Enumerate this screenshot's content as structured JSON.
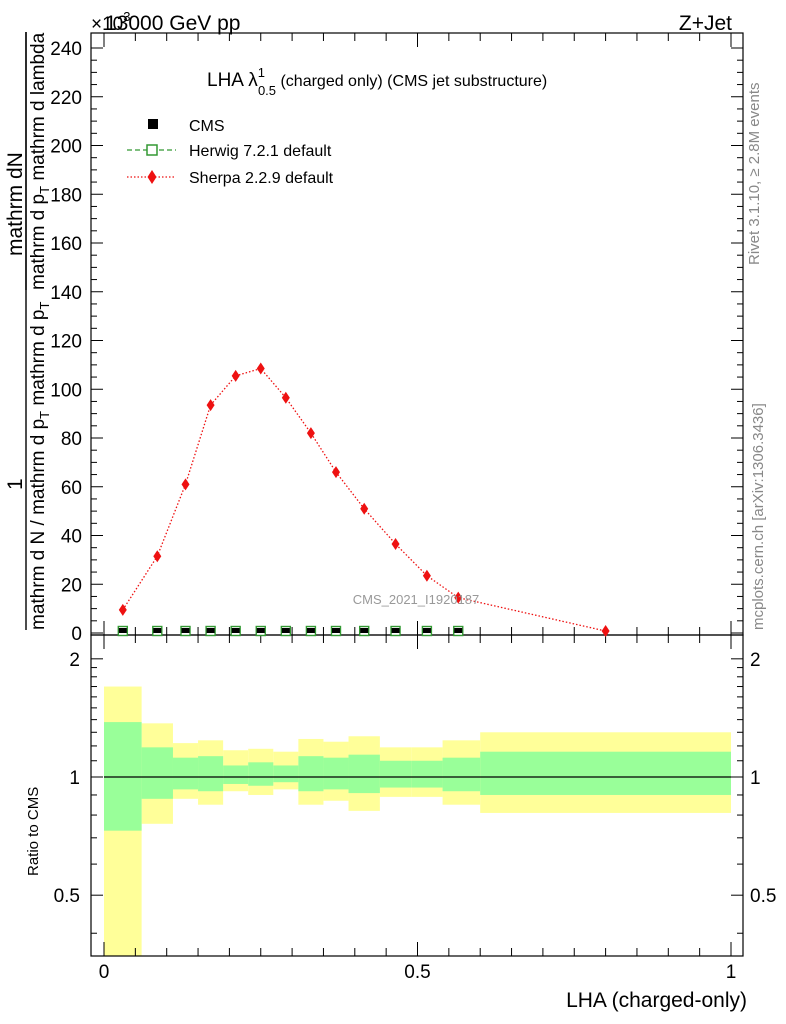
{
  "header": {
    "left": "13000 GeV pp",
    "right": "Z+Jet",
    "exponent": "×10",
    "exponent_power": "3"
  },
  "side_labels": {
    "rivet": "Rivet 3.1.10, ≥ 2.8M events",
    "mcplots": "mcplots.cern.ch [arXiv:1306.3436]"
  },
  "plot_title": {
    "main": "LHA λ",
    "sup": "1",
    "sub": "0.5",
    "rest": " (charged only) (CMS jet substructure)"
  },
  "watermark": "CMS_2021_I1920187",
  "main_ylabel": {
    "num_top": "mathrm dN",
    "den_top": "mathrm d p",
    "den_top_sub": "T",
    "den_top_rest": " mathrm d lambda",
    "num_outer": "1",
    "den_outer_a": "mathrm d N / mathrm d p",
    "den_outer_sub": "T",
    "den_outer_b": " mathrm d p",
    "den_outer_sub2": "T"
  },
  "ratio_ylabel": "Ratio to CMS",
  "xlabel": "LHA (charged-only)",
  "legend": {
    "cms": "CMS",
    "herwig": "Herwig 7.2.1 default",
    "sherpa": "Sherpa 2.2.9 default"
  },
  "colors": {
    "sherpa": "#ee1111",
    "herwig": "#339933",
    "band_outer": "#ffff99",
    "band_inner": "#99ff99"
  },
  "chart_data": [
    {
      "type": "line",
      "name": "main",
      "xlim": [
        0,
        1
      ],
      "ylim": [
        0,
        245
      ],
      "y_scale_note": "×10^3",
      "y_ticks": [
        0,
        20,
        40,
        60,
        80,
        100,
        120,
        140,
        160,
        180,
        200,
        220,
        240
      ],
      "y_tick_labels": [
        "0",
        "20",
        "40",
        "60",
        "80",
        "100",
        "120",
        "140",
        "160",
        "180",
        "200",
        "220",
        "240"
      ],
      "series": [
        {
          "name": "Sherpa 2.2.9 default",
          "x": [
            0.03,
            0.085,
            0.13,
            0.17,
            0.21,
            0.25,
            0.29,
            0.33,
            0.37,
            0.415,
            0.465,
            0.515,
            0.565,
            0.8
          ],
          "values": [
            9.5,
            31.5,
            61,
            93.5,
            105.5,
            108.5,
            96.5,
            82,
            66,
            51,
            36.5,
            23.5,
            14.5,
            0.8
          ]
        },
        {
          "name": "CMS",
          "x": [
            0.03,
            0.085,
            0.13,
            0.17,
            0.21,
            0.25,
            0.29,
            0.33,
            0.37,
            0.415,
            0.465,
            0.515,
            0.565
          ],
          "values": [
            0,
            0,
            0,
            0,
            0,
            0,
            0,
            0,
            0,
            0,
            0,
            0,
            0
          ]
        },
        {
          "name": "Herwig 7.2.1 default",
          "x": [
            0.03,
            0.085,
            0.13,
            0.17,
            0.21,
            0.25,
            0.29,
            0.33,
            0.37,
            0.415,
            0.465,
            0.515,
            0.565
          ],
          "values": [
            0,
            0,
            0,
            0,
            0,
            0,
            0,
            0,
            0,
            0,
            0,
            0,
            0
          ]
        }
      ]
    },
    {
      "type": "area",
      "name": "ratio",
      "xlim": [
        0,
        1
      ],
      "ylim": [
        0.35,
        2.3
      ],
      "y_scale": "log",
      "y_ticks": [
        0.5,
        1,
        2
      ],
      "y_tick_labels": [
        "0.5",
        "1",
        "2"
      ],
      "x_ticks": [
        0,
        0.5,
        1
      ],
      "x_tick_labels": [
        "0",
        "0.5",
        "1"
      ],
      "bins": [
        {
          "x0": 0.0,
          "x1": 0.06,
          "outer": [
            0.35,
            1.7
          ],
          "inner": [
            0.73,
            1.38
          ]
        },
        {
          "x0": 0.06,
          "x1": 0.11,
          "outer": [
            0.76,
            1.37
          ],
          "inner": [
            0.88,
            1.19
          ]
        },
        {
          "x0": 0.11,
          "x1": 0.15,
          "outer": [
            0.88,
            1.22
          ],
          "inner": [
            0.93,
            1.12
          ]
        },
        {
          "x0": 0.15,
          "x1": 0.19,
          "outer": [
            0.85,
            1.24
          ],
          "inner": [
            0.92,
            1.13
          ]
        },
        {
          "x0": 0.19,
          "x1": 0.23,
          "outer": [
            0.92,
            1.17
          ],
          "inner": [
            0.96,
            1.07
          ]
        },
        {
          "x0": 0.23,
          "x1": 0.27,
          "outer": [
            0.9,
            1.18
          ],
          "inner": [
            0.95,
            1.09
          ]
        },
        {
          "x0": 0.27,
          "x1": 0.31,
          "outer": [
            0.93,
            1.16
          ],
          "inner": [
            0.97,
            1.07
          ]
        },
        {
          "x0": 0.31,
          "x1": 0.35,
          "outer": [
            0.85,
            1.25
          ],
          "inner": [
            0.92,
            1.13
          ]
        },
        {
          "x0": 0.35,
          "x1": 0.39,
          "outer": [
            0.87,
            1.23
          ],
          "inner": [
            0.93,
            1.12
          ]
        },
        {
          "x0": 0.39,
          "x1": 0.44,
          "outer": [
            0.82,
            1.27
          ],
          "inner": [
            0.91,
            1.14
          ]
        },
        {
          "x0": 0.44,
          "x1": 0.49,
          "outer": [
            0.89,
            1.19
          ],
          "inner": [
            0.94,
            1.1
          ]
        },
        {
          "x0": 0.49,
          "x1": 0.54,
          "outer": [
            0.89,
            1.19
          ],
          "inner": [
            0.94,
            1.1
          ]
        },
        {
          "x0": 0.54,
          "x1": 0.6,
          "outer": [
            0.85,
            1.24
          ],
          "inner": [
            0.92,
            1.12
          ]
        },
        {
          "x0": 0.6,
          "x1": 1.0,
          "outer": [
            0.81,
            1.3
          ],
          "inner": [
            0.9,
            1.16
          ]
        }
      ]
    }
  ]
}
